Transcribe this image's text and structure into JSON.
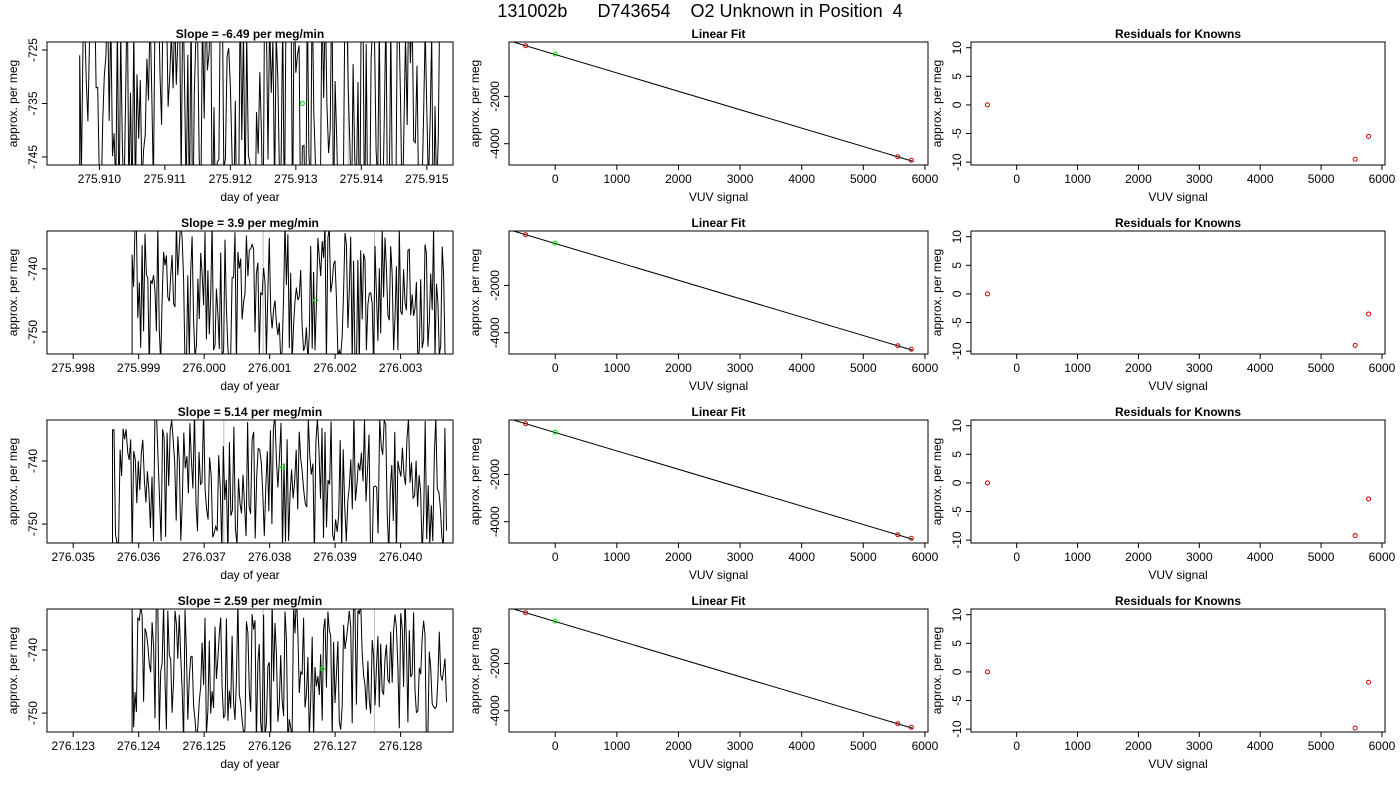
{
  "page_title": "131002b      D743654    O2 Unknown in Position  4",
  "colors": {
    "trace": "#000000",
    "known_point": "#cc0000",
    "unknown_point": "#00dd00",
    "marker_line": "#bbbbbb"
  },
  "chart_data": [
    {
      "type": "line",
      "row": 1,
      "panel": "timeseries",
      "title": "Slope =  -6.49  per meg/min",
      "xlabel": "day of year",
      "ylabel": "approx. per meg",
      "xlim": [
        275.9092,
        275.9154
      ],
      "ylim": [
        -746.5,
        -723.5
      ],
      "xticks": [
        "275.910",
        "275.911",
        "275.912",
        "275.913",
        "275.914",
        "275.915"
      ],
      "yticks": [
        "-725",
        "-735",
        "-745"
      ],
      "x_start": 275.9097,
      "x_end": 275.9152,
      "mean": -736,
      "amplitude": 26,
      "marker_lines": [
        275.9138
      ],
      "highlight": {
        "x": 275.9131,
        "y": -735.0
      }
    },
    {
      "type": "scatter",
      "row": 1,
      "panel": "linear_fit",
      "title": "Linear Fit",
      "xlabel": "VUV signal",
      "ylabel": "approx. per meg",
      "xlim": [
        -750,
        6050
      ],
      "ylim": [
        -4900,
        300
      ],
      "xticks": [
        "0",
        "1000",
        "2000",
        "3000",
        "4000",
        "5000",
        "6000"
      ],
      "yticks": [
        "-2000",
        "-4000"
      ],
      "fit_line": {
        "x": [
          -680,
          5800
        ],
        "y": [
          300,
          -4740
        ]
      },
      "knowns": [
        {
          "x": -480,
          "y": 140
        },
        {
          "x": 5560,
          "y": -4550
        },
        {
          "x": 5780,
          "y": -4700
        }
      ],
      "unknown": {
        "x": 0,
        "y": -210
      }
    },
    {
      "type": "scatter",
      "row": 1,
      "panel": "residuals",
      "title": "Residuals for Knowns",
      "xlabel": "VUV signal",
      "ylabel": "approx. per meg",
      "xlim": [
        -750,
        6050
      ],
      "ylim": [
        -10.5,
        11
      ],
      "xticks": [
        "0",
        "1000",
        "2000",
        "3000",
        "4000",
        "5000",
        "6000"
      ],
      "yticks": [
        "-10",
        "-5",
        "0",
        "5",
        "10"
      ],
      "knowns": [
        {
          "x": -480,
          "y": 0
        },
        {
          "x": 5560,
          "y": -9.5
        },
        {
          "x": 5780,
          "y": -5.5
        }
      ]
    },
    {
      "type": "line",
      "row": 2,
      "panel": "timeseries",
      "title": "Slope =  3.9  per meg/min",
      "xlabel": "day of year",
      "ylabel": "approx. per meg",
      "xlim": [
        275.9976,
        276.0038
      ],
      "ylim": [
        -753.5,
        -734.0
      ],
      "xticks": [
        "275.998",
        "275.999",
        "276.000",
        "276.001",
        "276.002",
        "276.003"
      ],
      "yticks": [
        "-740",
        "-750"
      ],
      "x_start": 275.9989,
      "x_end": 276.0037,
      "mean": -744,
      "amplitude": 12,
      "marker_lines": [
        276.0009,
        276.0026
      ],
      "highlight": {
        "x": 276.0017,
        "y": -745.0
      }
    },
    {
      "type": "scatter",
      "row": 2,
      "panel": "linear_fit",
      "title": "Linear Fit",
      "xlabel": "VUV signal",
      "ylabel": "approx. per meg",
      "xlim": [
        -750,
        6050
      ],
      "ylim": [
        -4900,
        300
      ],
      "xticks": [
        "0",
        "1000",
        "2000",
        "3000",
        "4000",
        "5000",
        "6000"
      ],
      "yticks": [
        "-2000",
        "-4000"
      ],
      "fit_line": {
        "x": [
          -680,
          5800
        ],
        "y": [
          300,
          -4740
        ]
      },
      "knowns": [
        {
          "x": -480,
          "y": 140
        },
        {
          "x": 5560,
          "y": -4550
        },
        {
          "x": 5780,
          "y": -4700
        }
      ],
      "unknown": {
        "x": 0,
        "y": -210
      }
    },
    {
      "type": "scatter",
      "row": 2,
      "panel": "residuals",
      "title": "Residuals for Knowns",
      "xlabel": "VUV signal",
      "ylabel": "approx. per meg",
      "xlim": [
        -750,
        6050
      ],
      "ylim": [
        -10.5,
        11
      ],
      "xticks": [
        "0",
        "1000",
        "2000",
        "3000",
        "4000",
        "5000",
        "6000"
      ],
      "yticks": [
        "-10",
        "-5",
        "0",
        "5",
        "10"
      ],
      "knowns": [
        {
          "x": -480,
          "y": 0
        },
        {
          "x": 5560,
          "y": -9.0
        },
        {
          "x": 5780,
          "y": -3.5
        }
      ]
    },
    {
      "type": "line",
      "row": 3,
      "panel": "timeseries",
      "title": "Slope =  5.14  per meg/min",
      "xlabel": "day of year",
      "ylabel": "approx. per meg",
      "xlim": [
        276.0346,
        276.0408
      ],
      "ylim": [
        -753.0,
        -733.5
      ],
      "xticks": [
        "276.035",
        "276.036",
        "276.037",
        "276.038",
        "276.039",
        "276.040"
      ],
      "yticks": [
        "-740",
        "-750"
      ],
      "x_start": 276.0356,
      "x_end": 276.0407,
      "mean": -743,
      "amplitude": 12,
      "marker_lines": [
        276.0373
      ],
      "highlight": {
        "x": 276.0382,
        "y": -741.0
      }
    },
    {
      "type": "scatter",
      "row": 3,
      "panel": "linear_fit",
      "title": "Linear Fit",
      "xlabel": "VUV signal",
      "ylabel": "approx. per meg",
      "xlim": [
        -750,
        6050
      ],
      "ylim": [
        -4900,
        300
      ],
      "xticks": [
        "0",
        "1000",
        "2000",
        "3000",
        "4000",
        "5000",
        "6000"
      ],
      "yticks": [
        "-2000",
        "-4000"
      ],
      "fit_line": {
        "x": [
          -680,
          5800
        ],
        "y": [
          300,
          -4740
        ]
      },
      "knowns": [
        {
          "x": -480,
          "y": 140
        },
        {
          "x": 5560,
          "y": -4550
        },
        {
          "x": 5780,
          "y": -4700
        }
      ],
      "unknown": {
        "x": 0,
        "y": -210
      }
    },
    {
      "type": "scatter",
      "row": 3,
      "panel": "residuals",
      "title": "Residuals for Knowns",
      "xlabel": "VUV signal",
      "ylabel": "approx. per meg",
      "xlim": [
        -750,
        6050
      ],
      "ylim": [
        -10.5,
        11
      ],
      "xticks": [
        "0",
        "1000",
        "2000",
        "3000",
        "4000",
        "5000",
        "6000"
      ],
      "yticks": [
        "-10",
        "-5",
        "0",
        "5",
        "10"
      ],
      "knowns": [
        {
          "x": -480,
          "y": 0
        },
        {
          "x": 5560,
          "y": -9.2
        },
        {
          "x": 5780,
          "y": -2.8
        }
      ]
    },
    {
      "type": "line",
      "row": 4,
      "panel": "timeseries",
      "title": "Slope =  2.59  per meg/min",
      "xlabel": "day of year",
      "ylabel": "approx. per meg",
      "xlim": [
        276.1226,
        276.1288
      ],
      "ylim": [
        -753.0,
        -733.5
      ],
      "xticks": [
        "276.123",
        "276.124",
        "276.125",
        "276.126",
        "276.127",
        "276.128"
      ],
      "yticks": [
        "-740",
        "-750"
      ],
      "x_start": 276.1239,
      "x_end": 276.1287,
      "mean": -743,
      "amplitude": 12,
      "marker_lines": [
        276.1259,
        276.1276
      ],
      "highlight": {
        "x": 276.1268,
        "y": -743.0
      }
    },
    {
      "type": "scatter",
      "row": 4,
      "panel": "linear_fit",
      "title": "Linear Fit",
      "xlabel": "VUV signal",
      "ylabel": "approx. per meg",
      "xlim": [
        -750,
        6050
      ],
      "ylim": [
        -4900,
        300
      ],
      "xticks": [
        "0",
        "1000",
        "2000",
        "3000",
        "4000",
        "5000",
        "6000"
      ],
      "yticks": [
        "-2000",
        "-4000"
      ],
      "fit_line": {
        "x": [
          -680,
          5800
        ],
        "y": [
          300,
          -4740
        ]
      },
      "knowns": [
        {
          "x": -480,
          "y": 140
        },
        {
          "x": 5560,
          "y": -4550
        },
        {
          "x": 5780,
          "y": -4700
        }
      ],
      "unknown": {
        "x": 0,
        "y": -210
      }
    },
    {
      "type": "scatter",
      "row": 4,
      "panel": "residuals",
      "title": "Residuals for Knowns",
      "xlabel": "VUV signal",
      "ylabel": "approx. per meg",
      "xlim": [
        -750,
        6050
      ],
      "ylim": [
        -10.5,
        11
      ],
      "xticks": [
        "0",
        "1000",
        "2000",
        "3000",
        "4000",
        "5000",
        "6000"
      ],
      "yticks": [
        "-10",
        "-5",
        "0",
        "5",
        "10"
      ],
      "knowns": [
        {
          "x": -480,
          "y": 0
        },
        {
          "x": 5560,
          "y": -9.8
        },
        {
          "x": 5780,
          "y": -1.8
        }
      ]
    }
  ]
}
